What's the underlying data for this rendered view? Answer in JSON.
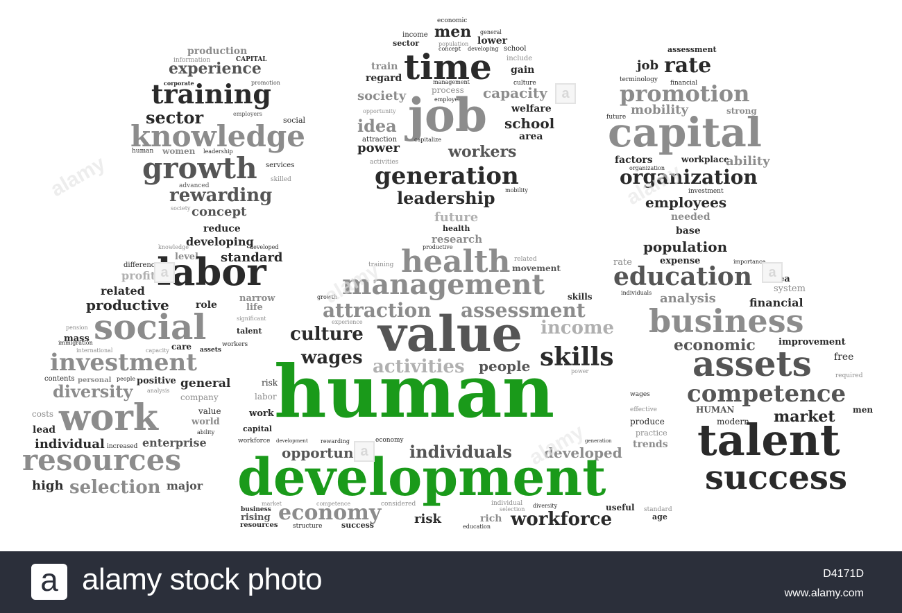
{
  "cloud": {
    "words": [
      "production",
      "CAPITAL",
      "information",
      "experience",
      "corporate",
      "promotion",
      "training",
      "sector",
      "employers",
      "social",
      "knowledge",
      "human",
      "women",
      "leadership",
      "growth",
      "services",
      "skilled",
      "advanced",
      "rewarding",
      "society",
      "concept",
      "economic",
      "men",
      "income",
      "general",
      "sector",
      "population",
      "lower",
      "time",
      "concept",
      "developing",
      "school",
      "include",
      "train",
      "gain",
      "regard",
      "management",
      "culture",
      "process",
      "capacity",
      "society",
      "employees",
      "opportunity",
      "job",
      "welfare",
      "idea",
      "school",
      "attraction",
      "area",
      "power",
      "capitalize",
      "workers",
      "activities",
      "generation",
      "mobility",
      "leadership",
      "assessment",
      "job",
      "rate",
      "terminology",
      "financial",
      "promotion",
      "mobility",
      "strong",
      "future",
      "capital",
      "factors",
      "workplace",
      "ability",
      "organization",
      "organization",
      "investment",
      "employees",
      "needed",
      "base",
      "reduce",
      "developing",
      "knowledge",
      "developed",
      "level",
      "standard",
      "difference",
      "labor",
      "profit",
      "related",
      "narrow",
      "productive",
      "role",
      "life",
      "significant",
      "social",
      "pension",
      "talent",
      "immigration",
      "care",
      "workers",
      "mass",
      "assets",
      "international",
      "capacity",
      "investment",
      "contents",
      "personal",
      "people",
      "positive",
      "general",
      "diversity",
      "analysis",
      "company",
      "costs",
      "work",
      "value",
      "world",
      "lead",
      "ability",
      "individual",
      "increased",
      "enterprise",
      "resources",
      "high",
      "selection",
      "major",
      "future",
      "health",
      "research",
      "productive",
      "health",
      "related",
      "training",
      "movement",
      "management",
      "growth",
      "skills",
      "attraction",
      "assessment",
      "experience",
      "income",
      "culture",
      "value",
      "wages",
      "skills",
      "activities",
      "people",
      "power",
      "human",
      "risk",
      "wages",
      "labor",
      "effective",
      "work",
      "produce",
      "capital",
      "practice",
      "workforce",
      "development",
      "rewarding",
      "economy",
      "generation",
      "trends",
      "opportunity",
      "individuals",
      "developed",
      "development",
      "market",
      "competence",
      "considered",
      "individual",
      "diversity",
      "useful",
      "standard",
      "business",
      "selection",
      "rising",
      "economy",
      "rich",
      "workforce",
      "age",
      "resources",
      "structure",
      "success",
      "risk",
      "education",
      "population",
      "rate",
      "expense",
      "importance",
      "education",
      "idea",
      "individuals",
      "system",
      "analysis",
      "financial",
      "business",
      "economic",
      "improvement",
      "assets",
      "free",
      "required",
      "competence",
      "HUMAN",
      "modern",
      "market",
      "men",
      "talent",
      "success"
    ]
  },
  "watermark": {
    "brand": "alamy",
    "logo_letter": "a"
  },
  "footer": {
    "logo_letter": "a",
    "brand_text": "alamy stock photo",
    "image_id": "D4171D",
    "url": "www.alamy.com"
  }
}
